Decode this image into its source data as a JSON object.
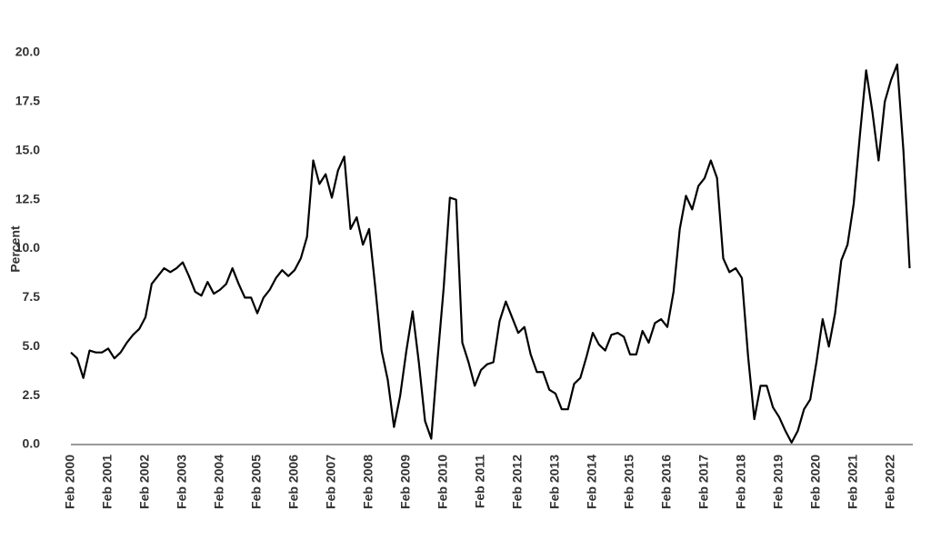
{
  "chart_data": {
    "type": "line",
    "y_label": "Percent",
    "categories": [
      "Feb 2000",
      null,
      null,
      null,
      null,
      null,
      "Feb 2001",
      null,
      null,
      null,
      null,
      null,
      "Feb 2002",
      null,
      null,
      null,
      null,
      null,
      "Feb 2003",
      null,
      null,
      null,
      null,
      null,
      "Feb 2004",
      null,
      null,
      null,
      null,
      null,
      "Feb 2005",
      null,
      null,
      null,
      null,
      null,
      "Feb 2006",
      null,
      null,
      null,
      null,
      null,
      "Feb 2007",
      null,
      null,
      null,
      null,
      null,
      "Feb 2008",
      null,
      null,
      null,
      null,
      null,
      "Feb 2009",
      null,
      null,
      null,
      null,
      null,
      "Feb 2010",
      null,
      null,
      null,
      null,
      null,
      "Feb 2011",
      null,
      null,
      null,
      null,
      null,
      "Feb 2012",
      null,
      null,
      null,
      null,
      null,
      "Feb 2013",
      null,
      null,
      null,
      null,
      null,
      "Feb 2014",
      null,
      null,
      null,
      null,
      null,
      "Feb 2015",
      null,
      null,
      null,
      null,
      null,
      "Feb 2016",
      null,
      null,
      null,
      null,
      null,
      "Feb 2017",
      null,
      null,
      null,
      null,
      null,
      "Feb 2018",
      null,
      null,
      null,
      null,
      null,
      "Feb 2019",
      null,
      null,
      null,
      null,
      null,
      "Feb 2020",
      null,
      null,
      null,
      null,
      null,
      "Feb 2021",
      null,
      null,
      null,
      null,
      null,
      "Feb 2022",
      null,
      null,
      null
    ],
    "series": [
      {
        "name": "Percent",
        "color": "#000000",
        "values": [
          4.7,
          4.4,
          3.4,
          4.8,
          4.7,
          4.7,
          4.9,
          4.4,
          4.7,
          5.2,
          5.6,
          5.9,
          6.5,
          8.2,
          8.6,
          9.0,
          8.8,
          9.0,
          9.3,
          8.6,
          7.8,
          7.6,
          8.3,
          7.7,
          7.9,
          8.2,
          9.0,
          8.2,
          7.5,
          7.5,
          6.7,
          7.5,
          7.9,
          8.5,
          8.9,
          8.6,
          8.9,
          9.5,
          10.6,
          14.5,
          13.3,
          13.8,
          12.6,
          14.0,
          14.7,
          11.0,
          11.6,
          10.2,
          11.0,
          8.0,
          4.8,
          3.3,
          0.9,
          2.5,
          4.8,
          6.8,
          4.2,
          1.2,
          0.3,
          4.3,
          8.0,
          12.6,
          12.5,
          5.2,
          4.2,
          3.0,
          3.8,
          4.1,
          4.2,
          6.3,
          7.3,
          6.5,
          5.7,
          6.0,
          4.6,
          3.7,
          3.7,
          2.8,
          2.6,
          1.8,
          1.8,
          3.1,
          3.4,
          4.5,
          5.7,
          5.1,
          4.8,
          5.6,
          5.7,
          5.5,
          4.6,
          4.6,
          5.8,
          5.2,
          6.2,
          6.4,
          6.0,
          7.8,
          11.0,
          12.7,
          12.0,
          13.2,
          13.6,
          14.5,
          13.6,
          9.5,
          8.8,
          9.0,
          8.5,
          4.5,
          1.3,
          3.0,
          3.0,
          1.9,
          1.4,
          0.7,
          0.1,
          0.7,
          1.8,
          2.3,
          4.2,
          6.4,
          5.0,
          6.7,
          9.4,
          10.2,
          12.3,
          15.8,
          19.1,
          17.0,
          14.5,
          17.5,
          18.6,
          19.4,
          15.0,
          9.0
        ]
      }
    ],
    "ylim": [
      0,
      20
    ],
    "yticks": [
      {
        "value": 0,
        "label": "0.0"
      },
      {
        "value": 2.5,
        "label": "2.5"
      },
      {
        "value": 5,
        "label": "5.0"
      },
      {
        "value": 7.5,
        "label": "7.5"
      },
      {
        "value": 10,
        "label": "10.0"
      },
      {
        "value": 12.5,
        "label": "12.5"
      },
      {
        "value": 15,
        "label": "15.0"
      },
      {
        "value": 17.5,
        "label": "17.5"
      },
      {
        "value": 20,
        "label": "20.0"
      }
    ],
    "grid": false
  }
}
